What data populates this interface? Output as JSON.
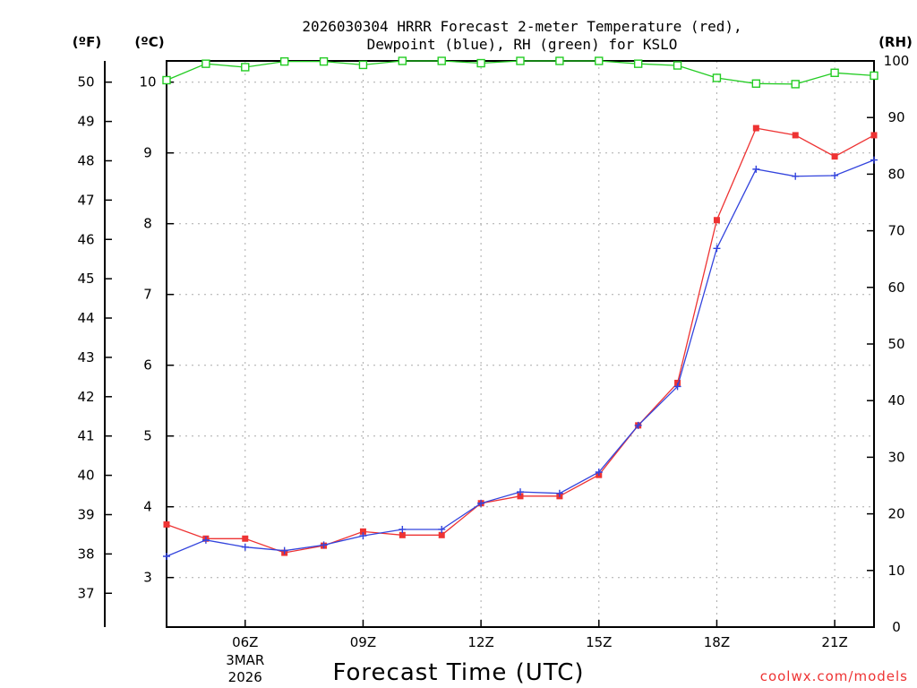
{
  "chart_data": {
    "type": "line",
    "title_line1": "2026030304 HRRR Forecast 2-meter Temperature (red),",
    "title_line2": "Dewpoint (blue), RH (green) for KSLO",
    "xlabel": "Forecast Time (UTC)",
    "credit": "coolwx.com/models",
    "units": {
      "fahrenheit": "(ºF)",
      "celsius": "(ºC)",
      "rh": "(RH)"
    },
    "x": [
      4,
      5,
      6,
      7,
      8,
      9,
      10,
      11,
      12,
      13,
      14,
      15,
      16,
      17,
      18,
      19,
      20,
      21,
      22
    ],
    "xlim": [
      4,
      22
    ],
    "x_ticks": [
      {
        "x": 6,
        "label": "06Z",
        "date1": "3MAR",
        "date2": "2026"
      },
      {
        "x": 9,
        "label": "09Z"
      },
      {
        "x": 12,
        "label": "12Z"
      },
      {
        "x": 15,
        "label": "15Z"
      },
      {
        "x": 18,
        "label": "18Z"
      },
      {
        "x": 21,
        "label": "21Z"
      }
    ],
    "celsius_axis": {
      "range": [
        2.3,
        10.3
      ],
      "ticks": [
        3,
        4,
        5,
        6,
        7,
        8,
        9,
        10
      ]
    },
    "fahrenheit_axis": {
      "ticks": [
        37,
        38,
        39,
        40,
        41,
        42,
        43,
        44,
        45,
        46,
        47,
        48,
        49,
        50
      ]
    },
    "rh_axis": {
      "range": [
        0,
        100
      ],
      "ticks": [
        0,
        10,
        20,
        30,
        40,
        50,
        60,
        70,
        80,
        90,
        100
      ]
    },
    "series": [
      {
        "name": "Temperature",
        "unit": "C",
        "color": "#ee3333",
        "marker": "filled-square",
        "values": [
          3.75,
          3.55,
          3.55,
          3.35,
          3.45,
          3.65,
          3.6,
          3.6,
          4.05,
          4.15,
          4.15,
          4.45,
          5.15,
          5.75,
          8.05,
          9.35,
          9.25,
          8.95,
          9.25
        ]
      },
      {
        "name": "Dewpoint",
        "unit": "C",
        "color": "#3344dd",
        "marker": "plus",
        "values": [
          3.3,
          3.53,
          3.43,
          3.38,
          3.46,
          3.59,
          3.68,
          3.68,
          4.05,
          4.21,
          4.19,
          4.49,
          5.15,
          5.7,
          7.65,
          8.77,
          8.67,
          8.68,
          8.9
        ]
      },
      {
        "name": "RH",
        "unit": "%",
        "color": "#22cc22",
        "marker": "open-square",
        "values": [
          96.6,
          99.5,
          98.9,
          99.9,
          99.9,
          99.3,
          100.0,
          100.0,
          99.6,
          100.0,
          100.0,
          100.0,
          99.5,
          99.2,
          97.0,
          96.0,
          95.9,
          97.9,
          97.4
        ]
      }
    ]
  }
}
